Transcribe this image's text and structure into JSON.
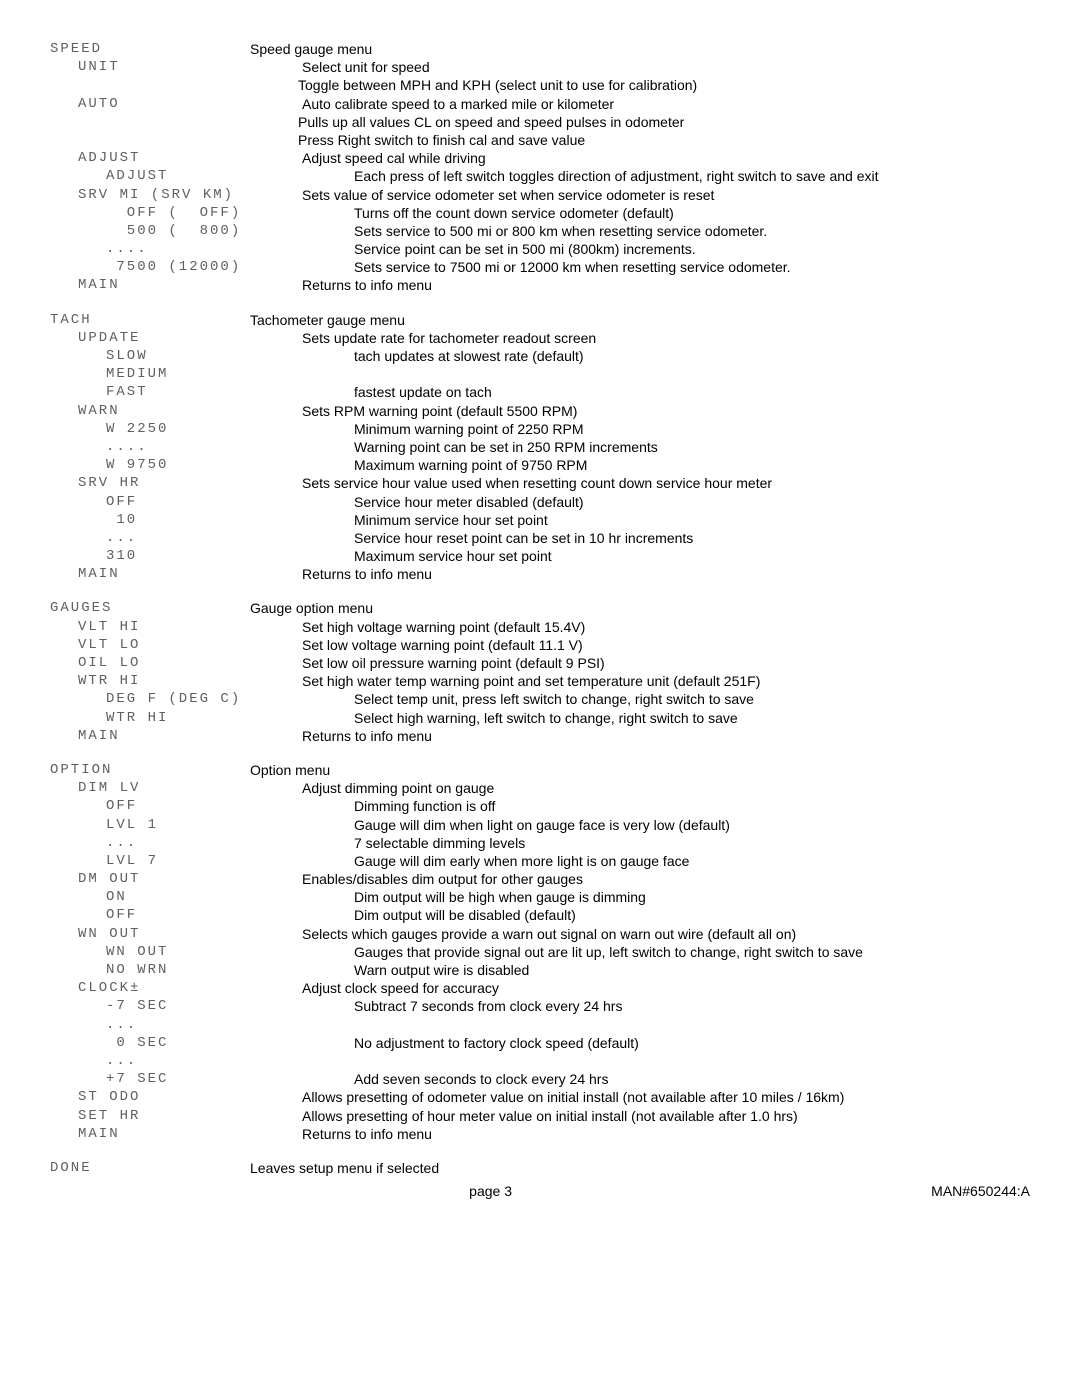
{
  "rows": [
    {
      "l": "SPEED",
      "li": 0,
      "r": "Speed gauge menu",
      "ri": 0
    },
    {
      "l": "UNIT",
      "li": 1,
      "r": "Select unit for speed",
      "ri": 1
    },
    {
      "l": "",
      "li": 0,
      "r": "Toggle between MPH and KPH (select unit to use for calibration)",
      "ri": 2
    },
    {
      "l": "AUTO",
      "li": 1,
      "r": "Auto calibrate speed to a marked mile or kilometer",
      "ri": 1
    },
    {
      "l": "",
      "li": 0,
      "r": "Pulls up all values CL on speed and speed pulses in odometer",
      "ri": 2
    },
    {
      "l": "",
      "li": 0,
      "r": "Press Right switch to finish cal and save value",
      "ri": 2
    },
    {
      "l": "ADJUST",
      "li": 1,
      "r": "Adjust speed cal while driving",
      "ri": 1
    },
    {
      "l": "ADJUST",
      "li": 2,
      "r": "Each press of left switch toggles direction of adjustment, right switch to save and exit",
      "ri": 2
    },
    {
      "l": "SRV MI (SRV KM)",
      "li": 1,
      "r": "Sets value of service odometer set when service odometer is reset",
      "ri": 1
    },
    {
      "l": "  OFF (  OFF)",
      "li": 2,
      "r": "Turns off the count down service odometer (default)",
      "ri": 2
    },
    {
      "l": "  500 (  800)",
      "li": 2,
      "r": "Sets service to 500 mi or 800 km when resetting service odometer.",
      "ri": 2
    },
    {
      "l": "....",
      "li": 2,
      "r": "Service point can be set in 500 mi (800km) increments.",
      "ri": 2
    },
    {
      "l": " 7500 (12000)",
      "li": 2,
      "r": "Sets service to 7500 mi or 12000 km when resetting service odometer.",
      "ri": 2
    },
    {
      "l": "MAIN",
      "li": 1,
      "r": "Returns to info menu",
      "ri": 1
    },
    {
      "spacer": true
    },
    {
      "l": "TACH",
      "li": 0,
      "r": "Tachometer gauge menu",
      "ri": 0
    },
    {
      "l": "UPDATE",
      "li": 1,
      "r": "Sets update rate for tachometer readout screen",
      "ri": 1
    },
    {
      "l": "SLOW",
      "li": 2,
      "r": "tach updates at slowest rate (default)",
      "ri": 2
    },
    {
      "l": "MEDIUM",
      "li": 2,
      "r": "",
      "ri": 2
    },
    {
      "l": "FAST",
      "li": 2,
      "r": "fastest update on tach",
      "ri": 2
    },
    {
      "l": "WARN",
      "li": 1,
      "r": "Sets RPM warning point (default 5500 RPM)",
      "ri": 1
    },
    {
      "l": "W 2250",
      "li": 2,
      "r": "Minimum warning point of 2250 RPM",
      "ri": 2
    },
    {
      "l": "....",
      "li": 2,
      "r": "Warning point can be set in 250 RPM increments",
      "ri": 2
    },
    {
      "l": "W 9750",
      "li": 2,
      "r": "Maximum warning point of 9750 RPM",
      "ri": 2
    },
    {
      "l": "SRV HR",
      "li": 1,
      "r": "Sets service hour value used when resetting count down service hour meter",
      "ri": 1
    },
    {
      "l": "OFF",
      "li": 2,
      "r": "Service hour meter disabled (default)",
      "ri": 2
    },
    {
      "l": " 10",
      "li": 2,
      "r": "Minimum service hour set point",
      "ri": 2
    },
    {
      "l": "...",
      "li": 2,
      "r": "Service hour reset point can be set in 10 hr increments",
      "ri": 2
    },
    {
      "l": "310",
      "li": 2,
      "r": "Maximum service hour set point",
      "ri": 2
    },
    {
      "l": "MAIN",
      "li": 1,
      "r": "Returns to info menu",
      "ri": 1
    },
    {
      "spacer": true
    },
    {
      "l": "GAUGES",
      "li": 0,
      "r": "Gauge option menu",
      "ri": 0
    },
    {
      "l": "VLT HI",
      "li": 1,
      "r": "Set high voltage warning point (default 15.4V)",
      "ri": 1
    },
    {
      "l": "VLT LO",
      "li": 1,
      "r": "Set low voltage warning point (default 11.1 V)",
      "ri": 1
    },
    {
      "l": "OIL LO",
      "li": 1,
      "r": "Set low oil pressure warning point (default 9 PSI)",
      "ri": 1
    },
    {
      "l": "WTR HI",
      "li": 1,
      "r": "Set high water temp warning point and set temperature unit (default 251F)",
      "ri": 1
    },
    {
      "l": "DEG F (DEG C)",
      "li": 2,
      "r": "Select temp unit, press left switch to change, right switch to save",
      "ri": 2
    },
    {
      "l": "WTR HI",
      "li": 2,
      "r": "Select high warning, left switch to change, right switch to save",
      "ri": 2
    },
    {
      "l": "MAIN",
      "li": 1,
      "r": "Returns to info menu",
      "ri": 1
    },
    {
      "spacer": true
    },
    {
      "l": "OPTION",
      "li": 0,
      "r": "Option menu",
      "ri": 0
    },
    {
      "l": "DIM LV",
      "li": 1,
      "r": "Adjust dimming point on gauge",
      "ri": 1
    },
    {
      "l": "OFF",
      "li": 2,
      "r": "Dimming function is off",
      "ri": 2
    },
    {
      "l": "LVL 1",
      "li": 2,
      "r": "Gauge will dim when light on gauge face is very low (default)",
      "ri": 2
    },
    {
      "l": "...",
      "li": 2,
      "r": "7 selectable dimming levels",
      "ri": 2
    },
    {
      "l": "LVL 7",
      "li": 2,
      "r": "Gauge will dim early when more light is on gauge face",
      "ri": 2
    },
    {
      "l": "DM OUT",
      "li": 1,
      "r": "Enables/disables dim output for other gauges",
      "ri": 1
    },
    {
      "l": "ON",
      "li": 2,
      "r": "Dim output will be high when gauge is dimming",
      "ri": 2
    },
    {
      "l": "OFF",
      "li": 2,
      "r": "Dim output will be disabled (default)",
      "ri": 2
    },
    {
      "l": "WN OUT",
      "li": 1,
      "r": "Selects which gauges provide a warn out signal on warn out wire (default all on)",
      "ri": 1
    },
    {
      "l": "WN OUT",
      "li": 2,
      "r": "Gauges that provide signal out are lit up, left switch to change, right switch to save",
      "ri": 2
    },
    {
      "l": "NO WRN",
      "li": 2,
      "r": "Warn output wire is disabled",
      "ri": 2
    },
    {
      "l": "CLOCK±",
      "li": 1,
      "r": "Adjust clock speed for accuracy",
      "ri": 1
    },
    {
      "l": "-7 SEC",
      "li": 2,
      "r": "Subtract 7 seconds from clock every 24 hrs",
      "ri": 2
    },
    {
      "l": "...",
      "li": 2,
      "r": "",
      "ri": 2
    },
    {
      "l": " 0 SEC",
      "li": 2,
      "r": "No adjustment to factory clock speed (default)",
      "ri": 2
    },
    {
      "l": "...",
      "li": 2,
      "r": "",
      "ri": 2
    },
    {
      "l": "+7 SEC",
      "li": 2,
      "r": "Add seven seconds to clock every 24 hrs",
      "ri": 2
    },
    {
      "l": "ST ODO",
      "li": 1,
      "r": "Allows presetting of odometer value on initial install (not available after 10 miles / 16km)",
      "ri": 1
    },
    {
      "l": "SET HR",
      "li": 1,
      "r": "Allows presetting of hour meter value on initial install (not available after 1.0 hrs)",
      "ri": 1
    },
    {
      "l": "MAIN",
      "li": 1,
      "r": "Returns to info menu",
      "ri": 1
    },
    {
      "spacer": true
    },
    {
      "l": "DONE",
      "li": 0,
      "r": "Leaves setup menu if selected",
      "ri": 0
    }
  ],
  "footer": {
    "page": "page 3",
    "doc": "MAN#650244:A"
  }
}
